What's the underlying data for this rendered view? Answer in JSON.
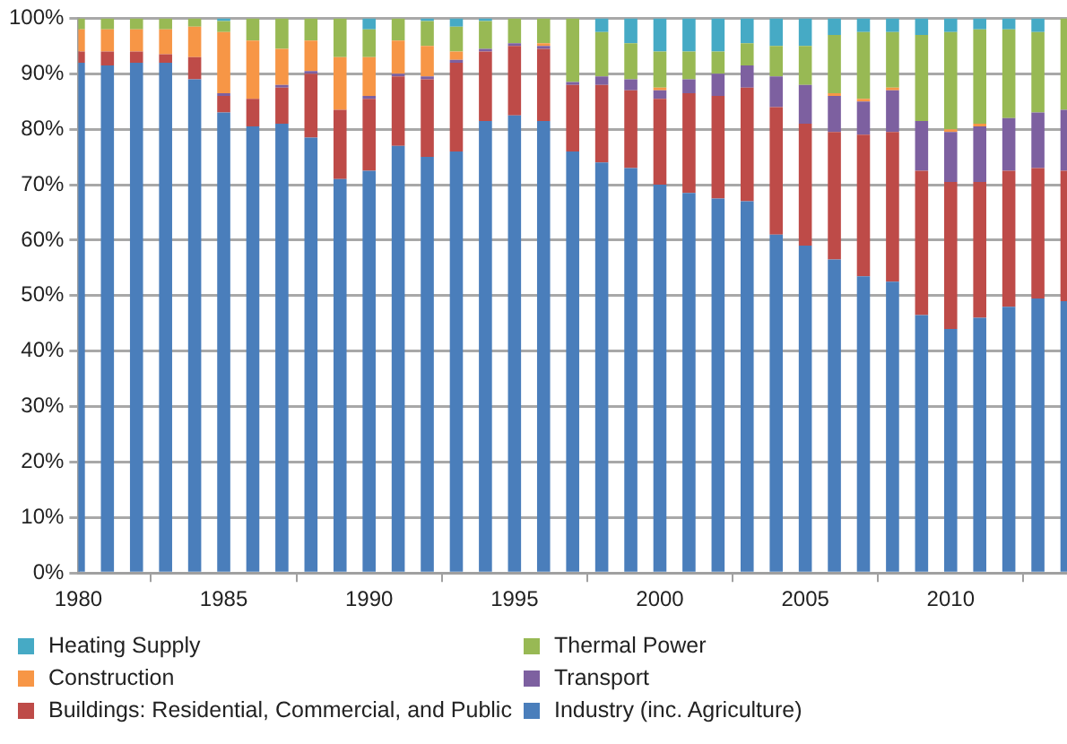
{
  "chart_data": {
    "type": "bar",
    "stacked": true,
    "x": [
      1980,
      1981,
      1982,
      1983,
      1984,
      1985,
      1986,
      1987,
      1988,
      1989,
      1990,
      1991,
      1992,
      1993,
      1994,
      1995,
      1996,
      1997,
      1998,
      1999,
      2000,
      2001,
      2002,
      2003,
      2004,
      2005,
      2006,
      2007,
      2008,
      2009,
      2010,
      2011,
      2012,
      2013,
      2014
    ],
    "series": [
      {
        "name": "Industry (inc. Agriculture)",
        "color": "#4a7ebb",
        "values": [
          92,
          91.5,
          92,
          92,
          89,
          83,
          80.5,
          81,
          78.5,
          71,
          72.5,
          77,
          75,
          76,
          81.5,
          82.5,
          81.5,
          76,
          74,
          73,
          70,
          68.5,
          67.5,
          67,
          61,
          59,
          56.5,
          53.5,
          52.5,
          46.5,
          44,
          46,
          48,
          49.5,
          49
        ]
      },
      {
        "name": "Buildings: Residential, Commercial, and Public",
        "color": "#be4b48",
        "values": [
          2,
          2.5,
          2,
          1.5,
          4,
          3,
          5,
          6.5,
          11.5,
          12.5,
          13,
          12.5,
          14,
          16,
          12.5,
          12.5,
          13,
          12,
          14,
          14,
          15.5,
          18,
          18.5,
          20.5,
          23,
          22,
          23,
          25.5,
          27,
          26,
          26.5,
          24.5,
          24.5,
          23.5,
          23.5
        ]
      },
      {
        "name": "Transport",
        "color": "#7d60a0",
        "values": [
          0,
          0,
          0,
          0,
          0,
          0.5,
          0,
          0.5,
          0.5,
          0,
          0.5,
          0.5,
          0.5,
          0.5,
          0.5,
          0.5,
          0.5,
          0.5,
          1.5,
          2,
          1.5,
          2.5,
          4,
          4,
          5.5,
          7,
          6.5,
          6,
          7.5,
          9,
          9,
          10,
          9.5,
          10,
          11
        ]
      },
      {
        "name": "Construction",
        "color": "#f79646",
        "values": [
          4,
          4,
          4,
          4.5,
          5.5,
          11,
          10.5,
          6.5,
          5.5,
          9.5,
          7,
          6,
          5.5,
          1.5,
          0,
          0,
          0.5,
          0,
          0,
          0,
          0.5,
          0,
          0,
          0,
          0,
          0,
          0.5,
          0.5,
          0.5,
          0,
          0.5,
          0.5,
          0,
          0,
          0
        ]
      },
      {
        "name": "Thermal Power",
        "color": "#98b954",
        "values": [
          2,
          2,
          2,
          2,
          1.5,
          2,
          4,
          5.5,
          4,
          7,
          5,
          4,
          4.5,
          4.5,
          5,
          4.5,
          4.5,
          11.5,
          8,
          6.5,
          6.5,
          5,
          4,
          4,
          5.5,
          7,
          10.5,
          12,
          10,
          15.5,
          17.5,
          17,
          16,
          14.5,
          16.5
        ]
      },
      {
        "name": "Heating Supply",
        "color": "#46aac5",
        "values": [
          0,
          0,
          0,
          0,
          0,
          0.5,
          0,
          0,
          0,
          0,
          2,
          0,
          0.5,
          1.5,
          0.5,
          0,
          0,
          0,
          2.5,
          4.5,
          6,
          6,
          6,
          4.5,
          5,
          5,
          3,
          2.5,
          2.5,
          3,
          2.5,
          2,
          2,
          2.5,
          0
        ]
      }
    ],
    "xlim": [
      1980,
      2014
    ],
    "xticks": [
      1980,
      1985,
      1990,
      1995,
      2000,
      2005,
      2010
    ],
    "ylim": [
      0,
      100
    ],
    "yticks": [
      {
        "value": 0,
        "label": "0%"
      },
      {
        "value": 10,
        "label": "10%"
      },
      {
        "value": 20,
        "label": "20%"
      },
      {
        "value": 30,
        "label": "30%"
      },
      {
        "value": 40,
        "label": "40%"
      },
      {
        "value": 50,
        "label": "50%"
      },
      {
        "value": 60,
        "label": "60%"
      },
      {
        "value": 70,
        "label": "70%"
      },
      {
        "value": 80,
        "label": "80%"
      },
      {
        "value": 90,
        "label": "90%"
      },
      {
        "value": 100,
        "label": "100%"
      }
    ],
    "grid": "y",
    "legend": "bottom"
  }
}
